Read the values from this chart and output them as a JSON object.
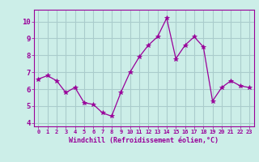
{
  "x": [
    0,
    1,
    2,
    3,
    4,
    5,
    6,
    7,
    8,
    9,
    10,
    11,
    12,
    13,
    14,
    15,
    16,
    17,
    18,
    19,
    20,
    21,
    22,
    23
  ],
  "y": [
    6.6,
    6.8,
    6.5,
    5.8,
    6.1,
    5.2,
    5.1,
    4.6,
    4.4,
    5.8,
    7.0,
    7.9,
    8.6,
    9.1,
    10.2,
    7.8,
    8.6,
    9.1,
    8.5,
    5.3,
    6.1,
    6.5,
    6.2,
    6.1
  ],
  "line_color": "#990099",
  "marker": "*",
  "marker_size": 4,
  "bg_color": "#cceee8",
  "grid_color": "#aacccc",
  "xlabel": "Windchill (Refroidissement éolien,°C)",
  "xlabel_color": "#990099",
  "tick_color": "#990099",
  "label_color": "#990099",
  "ylim": [
    3.8,
    10.7
  ],
  "xlim": [
    -0.5,
    23.5
  ],
  "yticks": [
    4,
    5,
    6,
    7,
    8,
    9,
    10
  ],
  "xticks": [
    0,
    1,
    2,
    3,
    4,
    5,
    6,
    7,
    8,
    9,
    10,
    11,
    12,
    13,
    14,
    15,
    16,
    17,
    18,
    19,
    20,
    21,
    22,
    23
  ],
  "xtick_labels": [
    "0",
    "1",
    "2",
    "3",
    "4",
    "5",
    "6",
    "7",
    "8",
    "9",
    "10",
    "11",
    "12",
    "13",
    "14",
    "15",
    "16",
    "17",
    "18",
    "19",
    "20",
    "21",
    "22",
    "23"
  ],
  "spine_color": "#990099",
  "frame_color": "#aaaaaa"
}
